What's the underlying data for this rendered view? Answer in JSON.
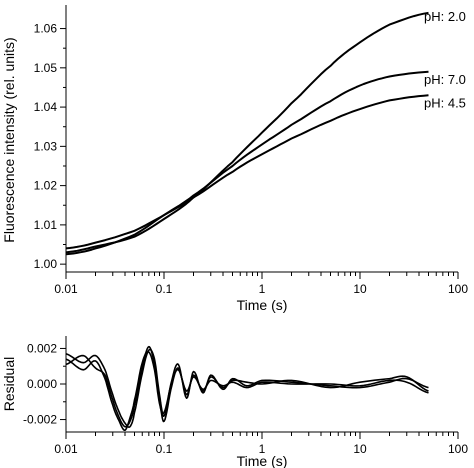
{
  "chart_data": [
    {
      "type": "line",
      "panel": "fit",
      "xlabel": "Time (s)",
      "ylabel": "Fluorescence intensity (rel. units)",
      "xscale": "log",
      "xlim": [
        0.01,
        100
      ],
      "ylim": [
        0.998,
        1.066
      ],
      "xticks": [
        "0.01",
        "0.1",
        "1",
        "10",
        "100"
      ],
      "yticks": [
        "1.00",
        "1.01",
        "1.02",
        "1.03",
        "1.04",
        "1.05",
        "1.06"
      ],
      "grid": false,
      "series": [
        {
          "name": "pH: 2.0",
          "x": [
            0.01,
            0.02,
            0.05,
            0.1,
            0.2,
            0.5,
            1,
            2,
            5,
            10,
            20,
            50
          ],
          "y": [
            1.003,
            1.0045,
            1.007,
            1.0115,
            1.017,
            1.026,
            1.0335,
            1.041,
            1.0505,
            1.0565,
            1.061,
            1.064
          ]
        },
        {
          "name": "pH: 7.0",
          "x": [
            0.01,
            0.02,
            0.05,
            0.1,
            0.2,
            0.5,
            1,
            2,
            5,
            10,
            20,
            50
          ],
          "y": [
            1.0025,
            1.004,
            1.0075,
            1.0125,
            1.0175,
            1.025,
            1.0305,
            1.0355,
            1.0415,
            1.0455,
            1.0478,
            1.049
          ]
        },
        {
          "name": "pH: 4.5",
          "x": [
            0.01,
            0.02,
            0.05,
            0.1,
            0.2,
            0.5,
            1,
            2,
            5,
            10,
            20,
            50
          ],
          "y": [
            1.004,
            1.0055,
            1.0085,
            1.0125,
            1.017,
            1.0235,
            1.028,
            1.032,
            1.0365,
            1.0395,
            1.0417,
            1.043
          ]
        }
      ]
    },
    {
      "type": "line",
      "panel": "residual",
      "xlabel": "Time (s)",
      "ylabel": "Residual",
      "xscale": "log",
      "xlim": [
        0.01,
        100
      ],
      "ylim": [
        -0.0027,
        0.0027
      ],
      "xticks": [
        "0.01",
        "0.1",
        "1",
        "10",
        "100"
      ],
      "yticks": [
        "0.002",
        "0.000",
        "-0.002"
      ],
      "grid": false,
      "series": [
        {
          "x": [
            0.01,
            0.015,
            0.02,
            0.025,
            0.03,
            0.035,
            0.04,
            0.045,
            0.05,
            0.06,
            0.07,
            0.08,
            0.09,
            0.1,
            0.12,
            0.14,
            0.17,
            0.2,
            0.25,
            0.3,
            0.4,
            0.5,
            0.7,
            1,
            2,
            5,
            10,
            20,
            30,
            50
          ],
          "y": [
            0.0017,
            0.0012,
            0.0016,
            0.0008,
            -0.0006,
            -0.0016,
            -0.0022,
            -0.0024,
            -0.0016,
            0.0006,
            0.0019,
            0.0014,
            -0.0006,
            -0.0018,
            0.0002,
            0.0011,
            -0.0008,
            0.0007,
            -0.0005,
            0.0005,
            -0.0003,
            0.0003,
            -0.0001,
            0.0002,
            0.0001,
            -0.0001,
            -0.0002,
            0.0001,
            0.0003,
            -0.0002
          ]
        },
        {
          "x": [
            0.01,
            0.015,
            0.02,
            0.025,
            0.03,
            0.035,
            0.04,
            0.045,
            0.05,
            0.06,
            0.07,
            0.08,
            0.09,
            0.1,
            0.12,
            0.14,
            0.17,
            0.2,
            0.25,
            0.3,
            0.4,
            0.5,
            0.7,
            1,
            2,
            5,
            10,
            20,
            30,
            50
          ],
          "y": [
            0.0011,
            0.0016,
            0.0009,
            0.0005,
            -0.0009,
            -0.0019,
            -0.0024,
            -0.0021,
            -0.0012,
            0.0009,
            0.0021,
            0.0011,
            -0.0009,
            -0.0021,
            -0.0001,
            0.0009,
            -0.0006,
            0.0005,
            -0.0004,
            0.0004,
            -0.0002,
            0.0002,
            0.0001,
            0.0,
            0.0002,
            -0.0002,
            0.0001,
            0.0003,
            0.0004,
            -0.0004
          ]
        },
        {
          "x": [
            0.01,
            0.015,
            0.02,
            0.025,
            0.03,
            0.035,
            0.04,
            0.045,
            0.05,
            0.06,
            0.07,
            0.08,
            0.09,
            0.1,
            0.12,
            0.14,
            0.17,
            0.2,
            0.25,
            0.3,
            0.4,
            0.5,
            0.7,
            1,
            2,
            5,
            10,
            20,
            30,
            50
          ],
          "y": [
            0.0014,
            0.0008,
            0.0013,
            0.0003,
            -0.0012,
            -0.0021,
            -0.0026,
            -0.0019,
            -0.0009,
            0.0012,
            0.0018,
            0.0008,
            -0.0011,
            -0.0016,
            0.0001,
            0.0008,
            -0.0004,
            0.0004,
            -0.0003,
            0.0002,
            -0.0001,
            0.0001,
            -0.0002,
            0.0001,
            0.0,
            0.0,
            -0.0001,
            0.0002,
            0.0001,
            -0.0005
          ]
        }
      ]
    }
  ]
}
